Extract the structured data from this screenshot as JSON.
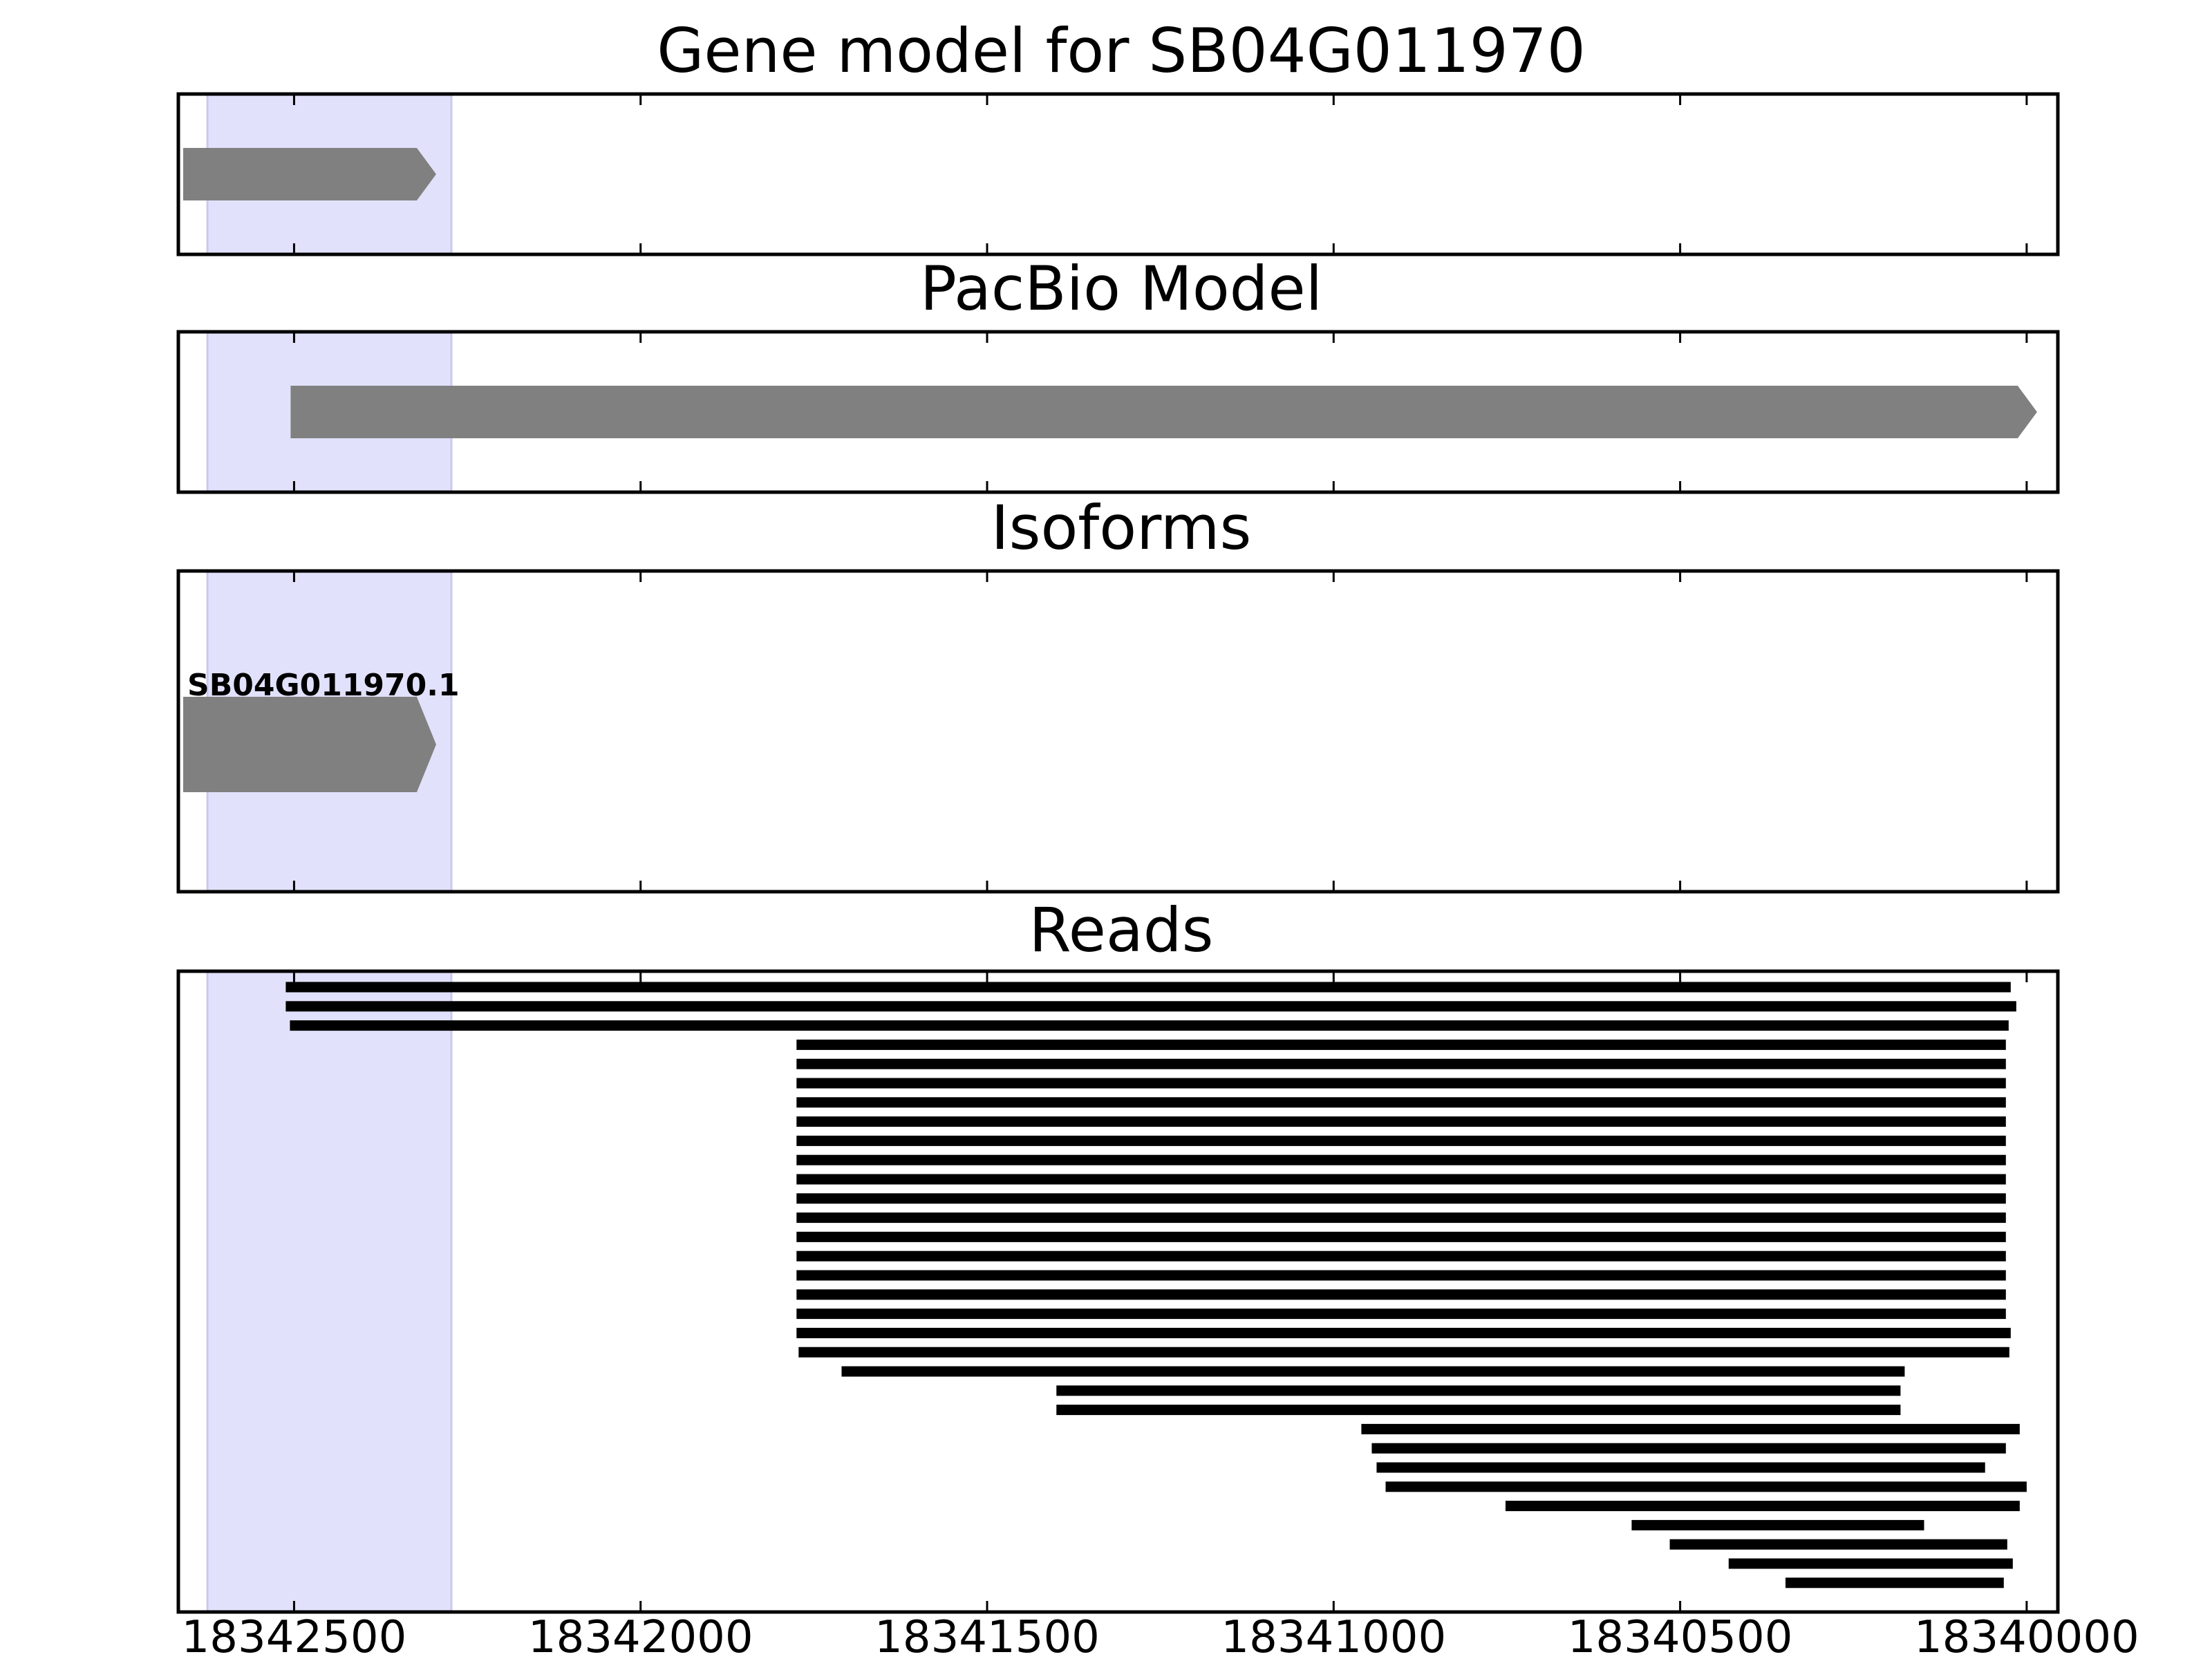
{
  "colors": {
    "highlight": "#e1e1fb",
    "feature": "#808080",
    "read": "#000000",
    "frame": "#000000"
  },
  "chart_data": {
    "type": "genome-track",
    "xaxis": {
      "reversed": true,
      "xlim": [
        18342667,
        18339955
      ],
      "ticks": [
        18342500,
        18342000,
        18341500,
        18341000,
        18340500,
        18340000
      ],
      "tick_labels": [
        "18342500",
        "18342000",
        "18341500",
        "18341000",
        "18340500",
        "18340000"
      ]
    },
    "highlight_region": {
      "start": 18342625,
      "end": 18342273
    },
    "panels": {
      "gene_model": {
        "title": "Gene model for SB04G011970",
        "features": [
          {
            "start": 18342660,
            "end": 18342295,
            "strand": "-"
          }
        ]
      },
      "pacbio_model": {
        "title": "PacBio Model",
        "features": [
          {
            "start": 18342505,
            "end": 18339985,
            "strand": "-"
          }
        ]
      },
      "isoforms": {
        "title": "Isoforms",
        "features": [
          {
            "label": "SB04G011970.1",
            "start": 18342660,
            "end": 18342295,
            "strand": "-"
          }
        ]
      },
      "reads": {
        "title": "Reads",
        "reads": [
          {
            "start": 18342512,
            "end": 18340023
          },
          {
            "start": 18342512,
            "end": 18340015
          },
          {
            "start": 18342506,
            "end": 18340026
          },
          {
            "start": 18341775,
            "end": 18340030
          },
          {
            "start": 18341775,
            "end": 18340030
          },
          {
            "start": 18341775,
            "end": 18340030
          },
          {
            "start": 18341775,
            "end": 18340030
          },
          {
            "start": 18341775,
            "end": 18340030
          },
          {
            "start": 18341775,
            "end": 18340030
          },
          {
            "start": 18341775,
            "end": 18340030
          },
          {
            "start": 18341775,
            "end": 18340030
          },
          {
            "start": 18341775,
            "end": 18340030
          },
          {
            "start": 18341775,
            "end": 18340030
          },
          {
            "start": 18341775,
            "end": 18340030
          },
          {
            "start": 18341775,
            "end": 18340030
          },
          {
            "start": 18341775,
            "end": 18340030
          },
          {
            "start": 18341775,
            "end": 18340030
          },
          {
            "start": 18341775,
            "end": 18340030
          },
          {
            "start": 18341775,
            "end": 18340023
          },
          {
            "start": 18341772,
            "end": 18340025
          },
          {
            "start": 18341710,
            "end": 18340176
          },
          {
            "start": 18341400,
            "end": 18340182
          },
          {
            "start": 18341400,
            "end": 18340182
          },
          {
            "start": 18340960,
            "end": 18340010
          },
          {
            "start": 18340945,
            "end": 18340030
          },
          {
            "start": 18340938,
            "end": 18340060
          },
          {
            "start": 18340925,
            "end": 18340000
          },
          {
            "start": 18340752,
            "end": 18340010
          },
          {
            "start": 18340570,
            "end": 18340148
          },
          {
            "start": 18340515,
            "end": 18340028
          },
          {
            "start": 18340430,
            "end": 18340020
          },
          {
            "start": 18340348,
            "end": 18340033
          }
        ]
      }
    }
  }
}
